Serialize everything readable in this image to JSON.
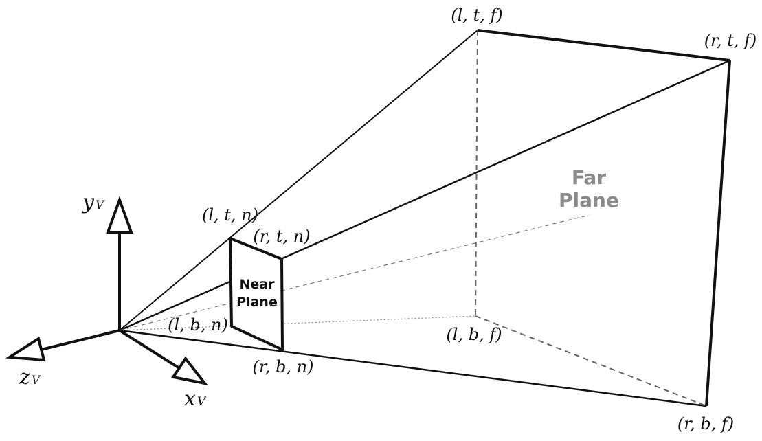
{
  "diagram": {
    "axes": {
      "y": {
        "letter": "y",
        "subscript": "V"
      },
      "z": {
        "letter": "z",
        "subscript": "V"
      },
      "x": {
        "letter": "x",
        "subscript": "V"
      }
    },
    "near_plane": {
      "line1": "Near",
      "line2": "Plane",
      "corners": {
        "ltn": "(l, t, n)",
        "rtn": "(r, t, n)",
        "lbn": "(l, b, n)",
        "rbn": "(r, b, n)"
      }
    },
    "far_plane": {
      "line1": "Far",
      "line2": "Plane",
      "corners": {
        "ltf": "(l, t, f)",
        "rtf": "(r, t, f)",
        "lbf": "(l, b, f)",
        "rbf": "(r, b, f)"
      }
    },
    "colors": {
      "line": "#111111",
      "hidden_edge": "#666666",
      "far_label": "#8a8a8a"
    }
  }
}
